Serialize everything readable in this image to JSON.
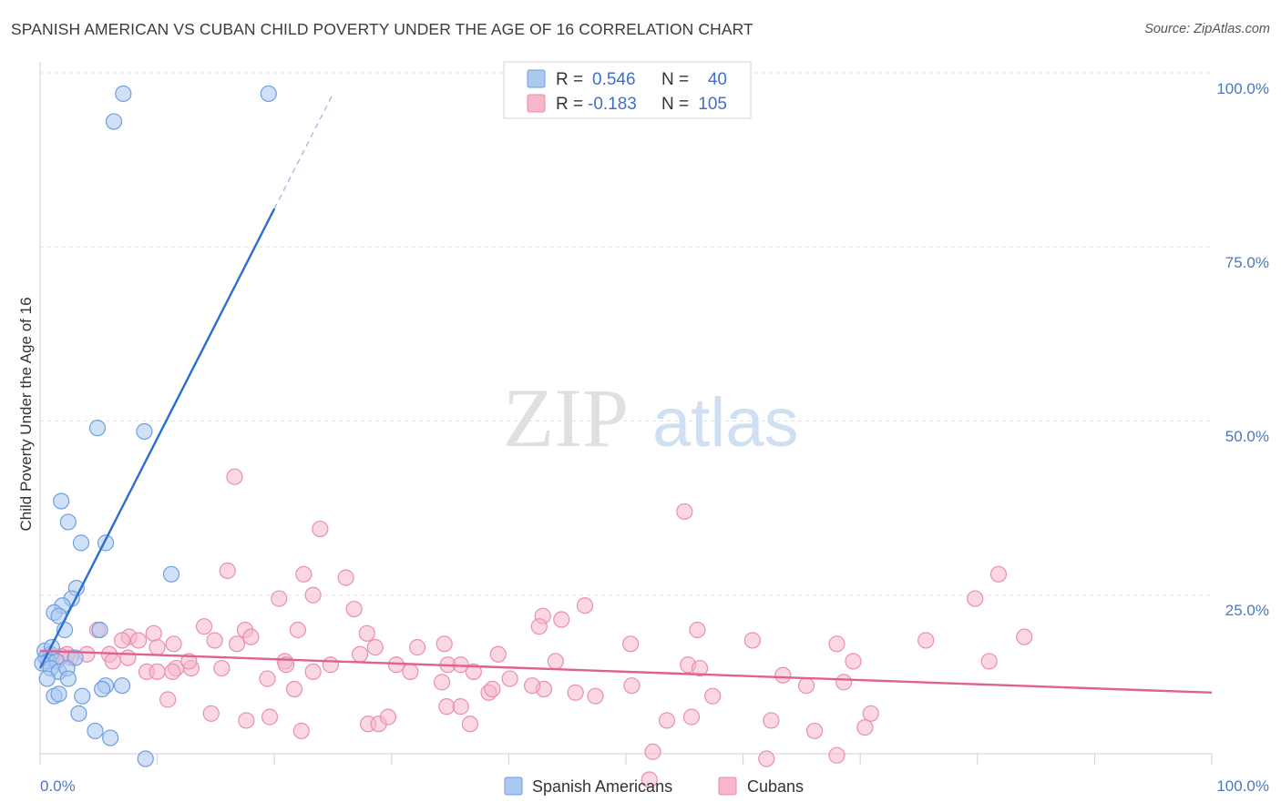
{
  "title": "SPANISH AMERICAN VS CUBAN CHILD POVERTY UNDER THE AGE OF 16 CORRELATION CHART",
  "source": "Source: ZipAtlas.com",
  "watermark": {
    "zip": "ZIP",
    "atlas": "atlas"
  },
  "colors": {
    "blue_fill": "#aac8f0",
    "blue_stroke": "#6f9ee0",
    "blue_line": "#2a6fd0",
    "pink_fill": "#f6b6cb",
    "pink_stroke": "#ea8fae",
    "pink_line": "#e0608f",
    "grid": "#e2e2e2",
    "tick_label": "#4a78c2"
  },
  "legend": {
    "rows": [
      {
        "r_label": "R =",
        "r_value": "0.546",
        "n_label": "N =",
        "n_value": "40"
      },
      {
        "r_label": "R =",
        "r_value": "-0.183",
        "n_label": "N =",
        "n_value": "105"
      }
    ]
  },
  "chart_data": {
    "type": "scatter",
    "title": "SPANISH AMERICAN VS CUBAN CHILD POVERTY UNDER THE AGE OF 16 CORRELATION CHART",
    "xlabel": "",
    "ylabel": "Child Poverty Under the Age of 16",
    "xlim": [
      0,
      100
    ],
    "ylim": [
      0,
      105
    ],
    "x_tick_labels": [
      "0.0%",
      "100.0%"
    ],
    "y_ticks": [
      25,
      50,
      75,
      100
    ],
    "y_tick_labels": [
      "25.0%",
      "50.0%",
      "75.0%",
      "100.0%"
    ],
    "grid": true,
    "legend_position": "top-center",
    "series": [
      {
        "name": "Spanish Americans",
        "r": 0.546,
        "n": 40,
        "trend": {
          "x0": 0,
          "y0": 14.5,
          "x1": 20,
          "y1": 80.5,
          "dash_to_x": 25,
          "dash_to_y": 97
        },
        "points": [
          [
            7.1,
            97
          ],
          [
            19.5,
            97
          ],
          [
            6.3,
            93
          ],
          [
            4.9,
            49
          ],
          [
            8.9,
            48.5
          ],
          [
            1.8,
            38.5
          ],
          [
            2.4,
            35.5
          ],
          [
            3.5,
            32.5
          ],
          [
            5.6,
            32.5
          ],
          [
            11.2,
            28
          ],
          [
            3.1,
            26
          ],
          [
            2.7,
            24.5
          ],
          [
            1.9,
            23.5
          ],
          [
            1.2,
            22.5
          ],
          [
            1.6,
            22
          ],
          [
            2.1,
            20
          ],
          [
            5.1,
            20
          ],
          [
            0.4,
            17
          ],
          [
            0.9,
            16.5
          ],
          [
            0.5,
            16
          ],
          [
            0.7,
            15.5
          ],
          [
            1.4,
            15.5
          ],
          [
            0.2,
            15.2
          ],
          [
            3.0,
            16
          ],
          [
            0.9,
            14.5
          ],
          [
            1.6,
            14.0
          ],
          [
            2.3,
            14.5
          ],
          [
            0.6,
            13.0
          ],
          [
            2.4,
            13.0
          ],
          [
            5.6,
            12
          ],
          [
            7.0,
            12
          ],
          [
            5.3,
            11.5
          ],
          [
            1.2,
            10.5
          ],
          [
            1.6,
            10.8
          ],
          [
            3.6,
            10.5
          ],
          [
            3.3,
            8
          ],
          [
            4.7,
            5.5
          ],
          [
            6.0,
            4.5
          ],
          [
            9.0,
            1.5
          ],
          [
            1.0,
            17.5
          ]
        ]
      },
      {
        "name": "Cubans",
        "r": -0.183,
        "n": 105,
        "trend": {
          "x0": 0,
          "y0": 17,
          "x1": 100,
          "y1": 11
        },
        "points": [
          [
            16.6,
            42
          ],
          [
            55.0,
            37
          ],
          [
            23.9,
            34.5
          ],
          [
            16.0,
            28.5
          ],
          [
            22.5,
            28.0
          ],
          [
            26.1,
            27.5
          ],
          [
            81.8,
            28.0
          ],
          [
            20.4,
            24.5
          ],
          [
            23.3,
            25.0
          ],
          [
            79.8,
            24.5
          ],
          [
            26.8,
            23.0
          ],
          [
            46.5,
            23.5
          ],
          [
            42.9,
            22.0
          ],
          [
            44.5,
            21.5
          ],
          [
            56.1,
            20.0
          ],
          [
            22.0,
            20.0
          ],
          [
            14.0,
            20.5
          ],
          [
            17.5,
            20.0
          ],
          [
            4.9,
            20.0
          ],
          [
            9.7,
            19.5
          ],
          [
            18.0,
            19.0
          ],
          [
            7.6,
            19.0
          ],
          [
            14.9,
            18.5
          ],
          [
            27.9,
            19.5
          ],
          [
            7.0,
            18.5
          ],
          [
            11.4,
            18.0
          ],
          [
            75.6,
            18.5
          ],
          [
            84.0,
            19.0
          ],
          [
            42.6,
            20.5
          ],
          [
            8.4,
            18.5
          ],
          [
            16.8,
            18.0
          ],
          [
            28.6,
            17.5
          ],
          [
            34.5,
            18.0
          ],
          [
            68.0,
            18.0
          ],
          [
            60.8,
            18.5
          ],
          [
            4.0,
            16.5
          ],
          [
            2.3,
            16.5
          ],
          [
            5.9,
            16.5
          ],
          [
            7.5,
            16.0
          ],
          [
            10.0,
            17.5
          ],
          [
            20.9,
            15.5
          ],
          [
            27.3,
            16.5
          ],
          [
            32.2,
            17.5
          ],
          [
            50.4,
            18.0
          ],
          [
            55.3,
            15.0
          ],
          [
            69.4,
            15.5
          ],
          [
            39.1,
            16.5
          ],
          [
            30.4,
            15.0
          ],
          [
            11.6,
            14.5
          ],
          [
            12.9,
            14.5
          ],
          [
            2.6,
            16.0
          ],
          [
            1.8,
            16.2
          ],
          [
            1.0,
            16.0
          ],
          [
            6.2,
            15.5
          ],
          [
            9.1,
            14.0
          ],
          [
            10.0,
            14.0
          ],
          [
            11.3,
            14.0
          ],
          [
            12.7,
            15.5
          ],
          [
            15.5,
            14.5
          ],
          [
            21.0,
            15.0
          ],
          [
            24.8,
            15.0
          ],
          [
            31.6,
            14.0
          ],
          [
            37.0,
            14.0
          ],
          [
            34.8,
            15.0
          ],
          [
            35.9,
            15.0
          ],
          [
            44.0,
            15.5
          ],
          [
            56.3,
            14.5
          ],
          [
            63.4,
            13.5
          ],
          [
            65.4,
            12.0
          ],
          [
            81.0,
            15.5
          ],
          [
            68.6,
            12.5
          ],
          [
            57.4,
            10.5
          ],
          [
            50.5,
            12.0
          ],
          [
            43.0,
            11.5
          ],
          [
            45.7,
            11.0
          ],
          [
            38.3,
            11.0
          ],
          [
            42.0,
            12.0
          ],
          [
            34.3,
            12.5
          ],
          [
            23.3,
            14.0
          ],
          [
            19.4,
            13.0
          ],
          [
            21.7,
            11.5
          ],
          [
            10.9,
            10.0
          ],
          [
            14.6,
            8.0
          ],
          [
            17.6,
            7.0
          ],
          [
            19.6,
            7.5
          ],
          [
            22.3,
            5.5
          ],
          [
            28.0,
            6.5
          ],
          [
            28.9,
            6.5
          ],
          [
            29.7,
            7.5
          ],
          [
            34.7,
            9.0
          ],
          [
            35.9,
            9.0
          ],
          [
            36.7,
            6.5
          ],
          [
            53.5,
            7.0
          ],
          [
            55.6,
            7.5
          ],
          [
            62.4,
            7.0
          ],
          [
            66.1,
            5.5
          ],
          [
            70.4,
            6.0
          ],
          [
            70.9,
            8.0
          ],
          [
            47.4,
            10.5
          ],
          [
            52.3,
            2.5
          ],
          [
            52.0,
            -1.5
          ],
          [
            62.0,
            1.5
          ],
          [
            68.0,
            2.0
          ],
          [
            40.1,
            13.0
          ],
          [
            38.6,
            11.5
          ]
        ]
      }
    ]
  },
  "bottom_legend": [
    {
      "label": "Spanish Americans"
    },
    {
      "label": "Cubans"
    }
  ]
}
